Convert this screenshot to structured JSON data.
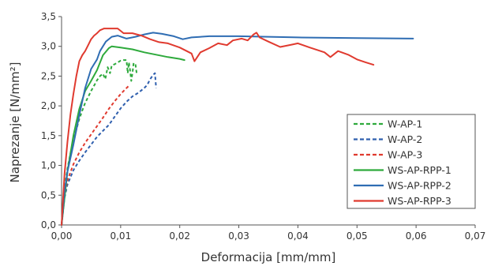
{
  "chart_data": {
    "type": "line",
    "xlabel": "Deformacija [mm/mm]",
    "ylabel": "Naprezanje [N/mm²]",
    "xlim": [
      0,
      0.07
    ],
    "ylim": [
      0,
      3.5
    ],
    "x_ticks": [
      "0,00",
      "0,01",
      "0,02",
      "0,03",
      "0,04",
      "0,05",
      "0,06",
      "0,07"
    ],
    "y_ticks": [
      "0,0",
      "0,5",
      "1,0",
      "1,5",
      "2,0",
      "2,5",
      "3,0",
      "3,5"
    ],
    "grid": false,
    "legend_position": "bottom-right",
    "series": [
      {
        "name": "W-AP-1",
        "color": "#2eaa3c",
        "dashed": true,
        "points": [
          [
            0,
            0
          ],
          [
            0.0005,
            0.62
          ],
          [
            0.001,
            0.95
          ],
          [
            0.0015,
            1.2
          ],
          [
            0.002,
            1.42
          ],
          [
            0.0025,
            1.6
          ],
          [
            0.003,
            1.78
          ],
          [
            0.0035,
            1.92
          ],
          [
            0.004,
            2.05
          ],
          [
            0.0045,
            2.15
          ],
          [
            0.005,
            2.25
          ],
          [
            0.0055,
            2.34
          ],
          [
            0.006,
            2.43
          ],
          [
            0.0065,
            2.5
          ],
          [
            0.007,
            2.54
          ],
          [
            0.0074,
            2.45
          ],
          [
            0.0078,
            2.65
          ],
          [
            0.0082,
            2.55
          ],
          [
            0.0085,
            2.68
          ],
          [
            0.009,
            2.7
          ],
          [
            0.0095,
            2.73
          ],
          [
            0.01,
            2.76
          ],
          [
            0.0105,
            2.77
          ],
          [
            0.011,
            2.77
          ],
          [
            0.0112,
            2.55
          ],
          [
            0.0114,
            2.73
          ],
          [
            0.0116,
            2.6
          ],
          [
            0.0118,
            2.42
          ],
          [
            0.012,
            2.55
          ],
          [
            0.0122,
            2.72
          ],
          [
            0.0125,
            2.7
          ],
          [
            0.0127,
            2.55
          ]
        ]
      },
      {
        "name": "W-AP-2",
        "color": "#2f5fae",
        "dashed": true,
        "points": [
          [
            0,
            0
          ],
          [
            0.0005,
            0.45
          ],
          [
            0.001,
            0.68
          ],
          [
            0.002,
            0.92
          ],
          [
            0.003,
            1.08
          ],
          [
            0.004,
            1.22
          ],
          [
            0.005,
            1.35
          ],
          [
            0.006,
            1.48
          ],
          [
            0.007,
            1.58
          ],
          [
            0.008,
            1.68
          ],
          [
            0.009,
            1.82
          ],
          [
            0.01,
            1.96
          ],
          [
            0.011,
            2.07
          ],
          [
            0.012,
            2.16
          ],
          [
            0.013,
            2.22
          ],
          [
            0.014,
            2.3
          ],
          [
            0.0145,
            2.35
          ],
          [
            0.015,
            2.45
          ],
          [
            0.0155,
            2.52
          ],
          [
            0.0158,
            2.55
          ],
          [
            0.016,
            2.3
          ]
        ]
      },
      {
        "name": "W-AP-3",
        "color": "#e03a2f",
        "dashed": true,
        "points": [
          [
            0,
            0
          ],
          [
            0.0005,
            0.5
          ],
          [
            0.001,
            0.75
          ],
          [
            0.002,
            1.02
          ],
          [
            0.003,
            1.22
          ],
          [
            0.004,
            1.38
          ],
          [
            0.005,
            1.52
          ],
          [
            0.006,
            1.66
          ],
          [
            0.007,
            1.8
          ],
          [
            0.008,
            1.95
          ],
          [
            0.009,
            2.08
          ],
          [
            0.01,
            2.2
          ],
          [
            0.0108,
            2.28
          ],
          [
            0.0113,
            2.33
          ],
          [
            0.0115,
            2.3
          ]
        ]
      },
      {
        "name": "WS-AP-RPP-1",
        "color": "#2eaa3c",
        "dashed": false,
        "points": [
          [
            0,
            0
          ],
          [
            0.001,
            0.9
          ],
          [
            0.002,
            1.5
          ],
          [
            0.003,
            1.95
          ],
          [
            0.004,
            2.25
          ],
          [
            0.005,
            2.42
          ],
          [
            0.006,
            2.6
          ],
          [
            0.007,
            2.85
          ],
          [
            0.008,
            2.97
          ],
          [
            0.0085,
            3.0
          ],
          [
            0.01,
            2.98
          ],
          [
            0.012,
            2.95
          ],
          [
            0.014,
            2.9
          ],
          [
            0.016,
            2.86
          ],
          [
            0.018,
            2.82
          ],
          [
            0.02,
            2.79
          ],
          [
            0.0208,
            2.77
          ]
        ]
      },
      {
        "name": "WS-AP-RPP-2",
        "color": "#2f6db3",
        "dashed": false,
        "points": [
          [
            0,
            0
          ],
          [
            0.0005,
            0.55
          ],
          [
            0.001,
            0.9
          ],
          [
            0.002,
            1.35
          ],
          [
            0.003,
            1.85
          ],
          [
            0.004,
            2.3
          ],
          [
            0.005,
            2.62
          ],
          [
            0.006,
            2.78
          ],
          [
            0.0065,
            2.92
          ],
          [
            0.0075,
            3.08
          ],
          [
            0.0085,
            3.16
          ],
          [
            0.0095,
            3.18
          ],
          [
            0.011,
            3.13
          ],
          [
            0.0125,
            3.16
          ],
          [
            0.014,
            3.2
          ],
          [
            0.0155,
            3.23
          ],
          [
            0.017,
            3.21
          ],
          [
            0.019,
            3.17
          ],
          [
            0.0205,
            3.12
          ],
          [
            0.022,
            3.15
          ],
          [
            0.025,
            3.17
          ],
          [
            0.03,
            3.17
          ],
          [
            0.04,
            3.15
          ],
          [
            0.05,
            3.14
          ],
          [
            0.0595,
            3.13
          ]
        ]
      },
      {
        "name": "WS-AP-RPP-3",
        "color": "#e03a2f",
        "dashed": false,
        "points": [
          [
            0,
            0
          ],
          [
            0.0005,
            0.85
          ],
          [
            0.001,
            1.4
          ],
          [
            0.0015,
            1.85
          ],
          [
            0.002,
            2.2
          ],
          [
            0.0025,
            2.5
          ],
          [
            0.003,
            2.75
          ],
          [
            0.0035,
            2.85
          ],
          [
            0.004,
            2.92
          ],
          [
            0.0045,
            3.02
          ],
          [
            0.005,
            3.12
          ],
          [
            0.0055,
            3.18
          ],
          [
            0.006,
            3.22
          ],
          [
            0.0065,
            3.27
          ],
          [
            0.0072,
            3.3
          ],
          [
            0.0085,
            3.3
          ],
          [
            0.0095,
            3.3
          ],
          [
            0.0105,
            3.22
          ],
          [
            0.012,
            3.22
          ],
          [
            0.0135,
            3.18
          ],
          [
            0.015,
            3.12
          ],
          [
            0.0165,
            3.07
          ],
          [
            0.018,
            3.05
          ],
          [
            0.02,
            2.98
          ],
          [
            0.022,
            2.88
          ],
          [
            0.0225,
            2.75
          ],
          [
            0.0235,
            2.9
          ],
          [
            0.025,
            2.97
          ],
          [
            0.0265,
            3.05
          ],
          [
            0.028,
            3.02
          ],
          [
            0.029,
            3.1
          ],
          [
            0.0305,
            3.13
          ],
          [
            0.0315,
            3.1
          ],
          [
            0.0325,
            3.2
          ],
          [
            0.033,
            3.23
          ],
          [
            0.0335,
            3.15
          ],
          [
            0.035,
            3.08
          ],
          [
            0.037,
            2.99
          ],
          [
            0.039,
            3.03
          ],
          [
            0.04,
            3.05
          ],
          [
            0.042,
            2.98
          ],
          [
            0.0445,
            2.9
          ],
          [
            0.0455,
            2.82
          ],
          [
            0.0468,
            2.92
          ],
          [
            0.0485,
            2.86
          ],
          [
            0.05,
            2.78
          ],
          [
            0.0515,
            2.73
          ],
          [
            0.0528,
            2.69
          ]
        ]
      }
    ]
  }
}
